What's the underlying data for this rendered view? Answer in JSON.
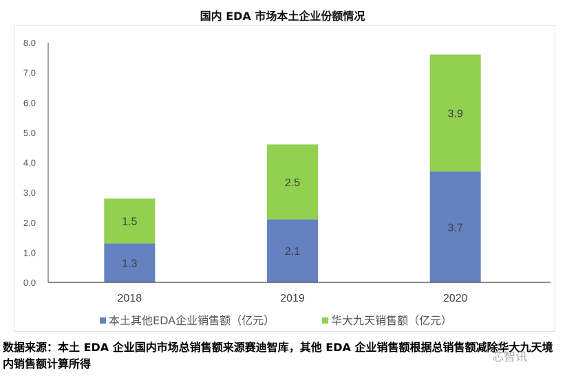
{
  "chart_data": {
    "type": "bar",
    "stacked": true,
    "title": "国内 EDA 市场本土企业份额情况",
    "categories": [
      "2018",
      "2019",
      "2020"
    ],
    "series": [
      {
        "name": "本土其他EDA企业销售额（亿元）",
        "values": [
          1.3,
          2.1,
          3.7
        ],
        "color": "#6482c0"
      },
      {
        "name": "华大九天销售额（亿元）",
        "values": [
          1.5,
          2.5,
          3.9
        ],
        "color": "#92d050"
      }
    ],
    "ylim": [
      0,
      8
    ],
    "yticks": [
      "0.0",
      "1.0",
      "2.0",
      "3.0",
      "4.0",
      "5.0",
      "6.0",
      "7.0",
      "8.0"
    ],
    "xlabel": "",
    "ylabel": "",
    "grid": false,
    "legend": "bottom"
  },
  "source_note": "数据来源：本土 EDA 企业国内市场总销售额来源赛迪智库，其他 EDA 企业销售额根据总销售额减除华大九天境内销售额计算所得",
  "watermark": "芯智讯"
}
